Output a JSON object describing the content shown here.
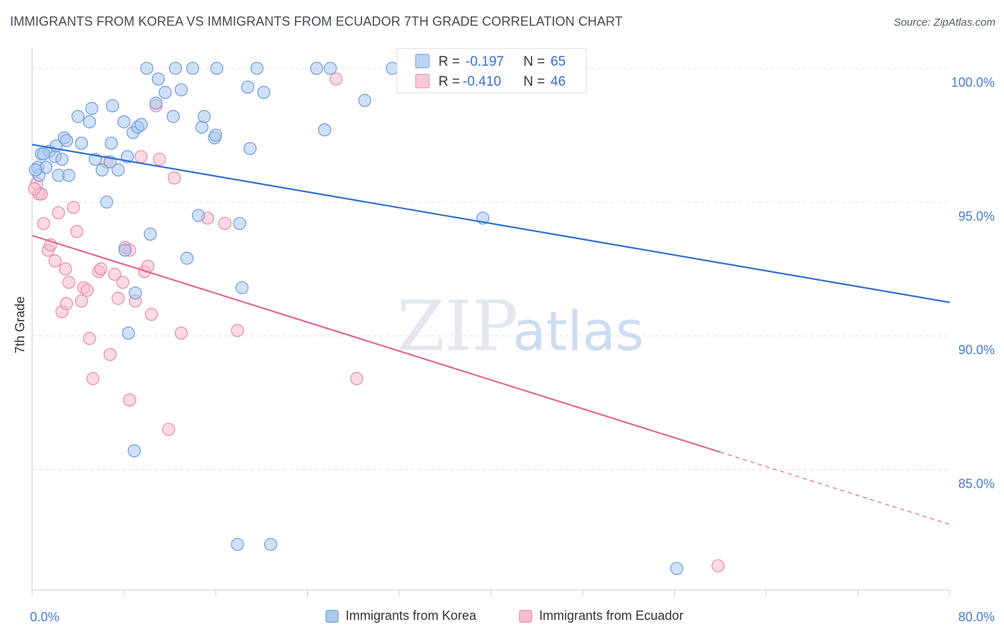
{
  "title": "IMMIGRANTS FROM KOREA VS IMMIGRANTS FROM ECUADOR 7TH GRADE CORRELATION CHART",
  "source": "Source: ZipAtlas.com",
  "watermark": {
    "zip": "ZIP",
    "atlas": "atlas"
  },
  "legend_top": {
    "rows": [
      {
        "r_label": "R =",
        "r_value": "-0.197",
        "n_label": "N =",
        "n_value": "65"
      },
      {
        "r_label": "R =",
        "r_value": "-0.410",
        "n_label": "N =",
        "n_value": "46"
      }
    ]
  },
  "legend_bottom": {
    "korea": "Immigrants from Korea",
    "ecuador": "Immigrants from Ecuador"
  },
  "colors": {
    "korea_fill": "#aac8f0",
    "korea_stroke": "#6b9be0",
    "korea_line": "#2f6fd0",
    "ecuador_fill": "#f7bcd0",
    "ecuador_stroke": "#e889aa",
    "ecuador_line": "#e06896",
    "grid": "#dde3ea",
    "tick_label": "#4a7ccc"
  },
  "chart_data": {
    "type": "scatter",
    "xlabel": "",
    "ylabel": "7th Grade",
    "xlim": [
      0,
      80
    ],
    "ylim": [
      80.5,
      100.9
    ],
    "x_tick_labels": [
      {
        "value": 0,
        "label": "0.0%"
      },
      {
        "value": 80,
        "label": "80.0%"
      }
    ],
    "y_tick_labels": [
      {
        "value": 100,
        "label": "100.0%"
      },
      {
        "value": 95,
        "label": "95.0%"
      },
      {
        "value": 90,
        "label": "90.0%"
      },
      {
        "value": 85,
        "label": "85.0%"
      }
    ],
    "grid": "horizontal dashed",
    "legend": "top-center",
    "series": [
      {
        "name": "Immigrants from Korea",
        "r": -0.197,
        "n": 65,
        "trend": {
          "x0": 0,
          "y0": 97.15,
          "x1": 80,
          "y1": 91.25
        },
        "points": [
          [
            0.5,
            96.3
          ],
          [
            0.6,
            96.0
          ],
          [
            0.8,
            96.8
          ],
          [
            1.2,
            96.3
          ],
          [
            1.5,
            96.9
          ],
          [
            2.0,
            96.7
          ],
          [
            2.1,
            97.1
          ],
          [
            2.3,
            96.0
          ],
          [
            2.6,
            96.6
          ],
          [
            2.8,
            97.4
          ],
          [
            3.0,
            97.3
          ],
          [
            3.2,
            96.0
          ],
          [
            4.0,
            98.2
          ],
          [
            4.3,
            97.2
          ],
          [
            5.0,
            98.0
          ],
          [
            5.2,
            98.5
          ],
          [
            5.5,
            96.6
          ],
          [
            6.1,
            96.2
          ],
          [
            6.5,
            95.0
          ],
          [
            6.8,
            96.5
          ],
          [
            6.9,
            97.2
          ],
          [
            7.0,
            98.6
          ],
          [
            7.5,
            96.2
          ],
          [
            8.0,
            98.0
          ],
          [
            8.1,
            93.2
          ],
          [
            8.3,
            96.7
          ],
          [
            8.8,
            97.6
          ],
          [
            9.0,
            91.6
          ],
          [
            9.2,
            97.8
          ],
          [
            9.5,
            97.9
          ],
          [
            10.0,
            100.0
          ],
          [
            10.3,
            93.8
          ],
          [
            10.8,
            98.7
          ],
          [
            11.0,
            99.6
          ],
          [
            11.6,
            99.1
          ],
          [
            12.3,
            98.2
          ],
          [
            12.5,
            100.0
          ],
          [
            13.0,
            99.2
          ],
          [
            13.5,
            92.9
          ],
          [
            14.0,
            100.0
          ],
          [
            14.5,
            94.5
          ],
          [
            14.8,
            97.8
          ],
          [
            15.0,
            98.2
          ],
          [
            15.9,
            97.4
          ],
          [
            16.0,
            97.5
          ],
          [
            16.1,
            100.0
          ],
          [
            17.9,
            82.2
          ],
          [
            18.1,
            94.2
          ],
          [
            18.3,
            91.8
          ],
          [
            18.8,
            99.3
          ],
          [
            19.0,
            97.0
          ],
          [
            19.6,
            100.0
          ],
          [
            20.2,
            99.1
          ],
          [
            20.8,
            82.2
          ],
          [
            24.8,
            100.0
          ],
          [
            25.5,
            97.7
          ],
          [
            26.0,
            100.0
          ],
          [
            29.0,
            98.8
          ],
          [
            31.4,
            100.0
          ],
          [
            39.3,
            94.4
          ],
          [
            56.2,
            81.3
          ],
          [
            8.4,
            90.1
          ],
          [
            8.9,
            85.7
          ],
          [
            0.3,
            96.2
          ],
          [
            1.0,
            96.8
          ]
        ]
      },
      {
        "name": "Immigrants from Ecuador",
        "r": -0.41,
        "n": 46,
        "trend": {
          "x0": 0,
          "y0": 93.75,
          "x1": 80,
          "y1": 82.95,
          "solid_to_x": 60
        },
        "points": [
          [
            0.4,
            95.7
          ],
          [
            0.6,
            95.3
          ],
          [
            0.8,
            95.3
          ],
          [
            1.0,
            94.2
          ],
          [
            1.4,
            93.2
          ],
          [
            1.6,
            93.4
          ],
          [
            2.0,
            92.8
          ],
          [
            2.3,
            94.6
          ],
          [
            2.6,
            90.9
          ],
          [
            2.9,
            92.5
          ],
          [
            3.0,
            91.2
          ],
          [
            3.2,
            92.0
          ],
          [
            3.6,
            94.8
          ],
          [
            3.9,
            93.9
          ],
          [
            4.3,
            91.3
          ],
          [
            4.5,
            91.8
          ],
          [
            4.8,
            91.7
          ],
          [
            5.0,
            89.9
          ],
          [
            5.3,
            88.4
          ],
          [
            5.8,
            92.4
          ],
          [
            6.0,
            92.5
          ],
          [
            6.5,
            96.5
          ],
          [
            6.8,
            89.3
          ],
          [
            7.2,
            92.3
          ],
          [
            7.5,
            91.4
          ],
          [
            7.9,
            92.0
          ],
          [
            8.1,
            93.3
          ],
          [
            8.5,
            87.6
          ],
          [
            9.0,
            91.3
          ],
          [
            9.5,
            96.7
          ],
          [
            9.8,
            92.4
          ],
          [
            10.1,
            92.6
          ],
          [
            10.4,
            90.8
          ],
          [
            10.8,
            98.6
          ],
          [
            11.1,
            96.6
          ],
          [
            11.9,
            86.5
          ],
          [
            12.4,
            95.9
          ],
          [
            13.0,
            90.1
          ],
          [
            15.3,
            94.4
          ],
          [
            16.8,
            94.2
          ],
          [
            17.9,
            90.2
          ],
          [
            26.5,
            99.6
          ],
          [
            28.3,
            88.4
          ],
          [
            59.8,
            81.4
          ],
          [
            8.5,
            93.2
          ],
          [
            0.2,
            95.5
          ]
        ]
      }
    ]
  }
}
